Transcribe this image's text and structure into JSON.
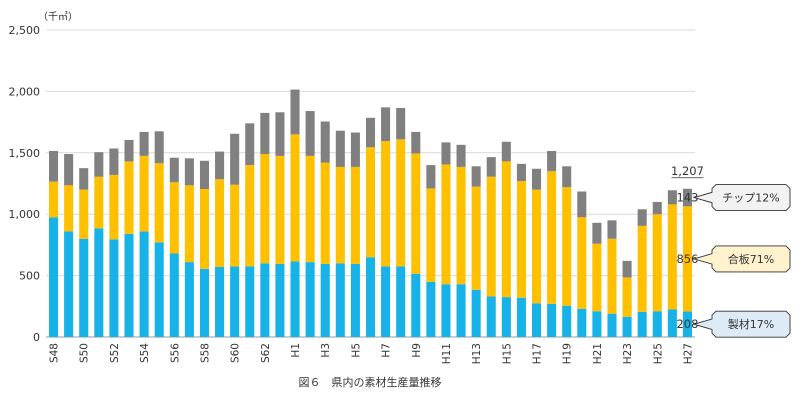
{
  "chart_data": {
    "type": "bar",
    "stacked": true,
    "unit_label": "（千㎥）",
    "caption": "図６　県内の素材生産量推移",
    "ylim": [
      0,
      2500
    ],
    "yticks": [
      "0",
      "500",
      "1,000",
      "1,500",
      "2,000",
      "2,500"
    ],
    "ytick_values": [
      0,
      500,
      1000,
      1500,
      2000,
      2500
    ],
    "grid": true,
    "categories": [
      "S48",
      "S49",
      "S50",
      "S51",
      "S52",
      "S53",
      "S54",
      "S55",
      "S56",
      "S57",
      "S58",
      "S59",
      "S60",
      "S61",
      "S62",
      "S63",
      "H1",
      "H2",
      "H3",
      "H4",
      "H5",
      "H6",
      "H7",
      "H8",
      "H9",
      "H10",
      "H11",
      "H12",
      "H13",
      "H14",
      "H15",
      "H16",
      "H17",
      "H18",
      "H19",
      "H20",
      "H21",
      "H22",
      "H23",
      "H24",
      "H25",
      "H26",
      "H27"
    ],
    "visible_tick_labels": [
      "S48",
      "",
      "S50",
      "",
      "S52",
      "",
      "S54",
      "",
      "S56",
      "",
      "S58",
      "",
      "S60",
      "",
      "S62",
      "",
      "H1",
      "",
      "H3",
      "",
      "H5",
      "",
      "H7",
      "",
      "H9",
      "",
      "H11",
      "",
      "H13",
      "",
      "H15",
      "",
      "H17",
      "",
      "H19",
      "",
      "H21",
      "",
      "H23",
      "",
      "H25",
      "",
      "H27"
    ],
    "series": [
      {
        "name": "製材",
        "color": "#17b3e8",
        "values": [
          975,
          860,
          800,
          885,
          795,
          840,
          860,
          770,
          680,
          610,
          555,
          570,
          575,
          575,
          600,
          595,
          615,
          610,
          595,
          600,
          595,
          650,
          575,
          575,
          515,
          450,
          430,
          430,
          385,
          330,
          325,
          320,
          275,
          270,
          255,
          230,
          210,
          190,
          165,
          205,
          210,
          225,
          208
        ]
      },
      {
        "name": "合板",
        "color": "#ffc000",
        "values": [
          290,
          375,
          400,
          420,
          525,
          590,
          615,
          645,
          580,
          625,
          650,
          715,
          665,
          825,
          890,
          880,
          1035,
          865,
          825,
          785,
          790,
          895,
          1020,
          1035,
          980,
          760,
          975,
          955,
          840,
          975,
          1105,
          950,
          925,
          1080,
          965,
          745,
          550,
          610,
          320,
          700,
          790,
          855,
          856
        ]
      },
      {
        "name": "チップ",
        "color": "#808080",
        "values": [
          250,
          255,
          175,
          200,
          215,
          175,
          195,
          260,
          200,
          220,
          230,
          225,
          415,
          340,
          335,
          355,
          365,
          365,
          335,
          295,
          280,
          240,
          275,
          255,
          175,
          190,
          180,
          180,
          165,
          160,
          160,
          140,
          170,
          165,
          170,
          210,
          170,
          150,
          135,
          135,
          100,
          115,
          143
        ]
      }
    ],
    "total_label": "1,207",
    "last_value_labels": [
      "208",
      "856",
      "143"
    ],
    "callouts": [
      {
        "text": "チップ12%",
        "fill": "#f2f2f2"
      },
      {
        "text": "合板71%",
        "fill": "#fff2cc"
      },
      {
        "text": "製材17%",
        "fill": "#ddebf7"
      }
    ]
  }
}
